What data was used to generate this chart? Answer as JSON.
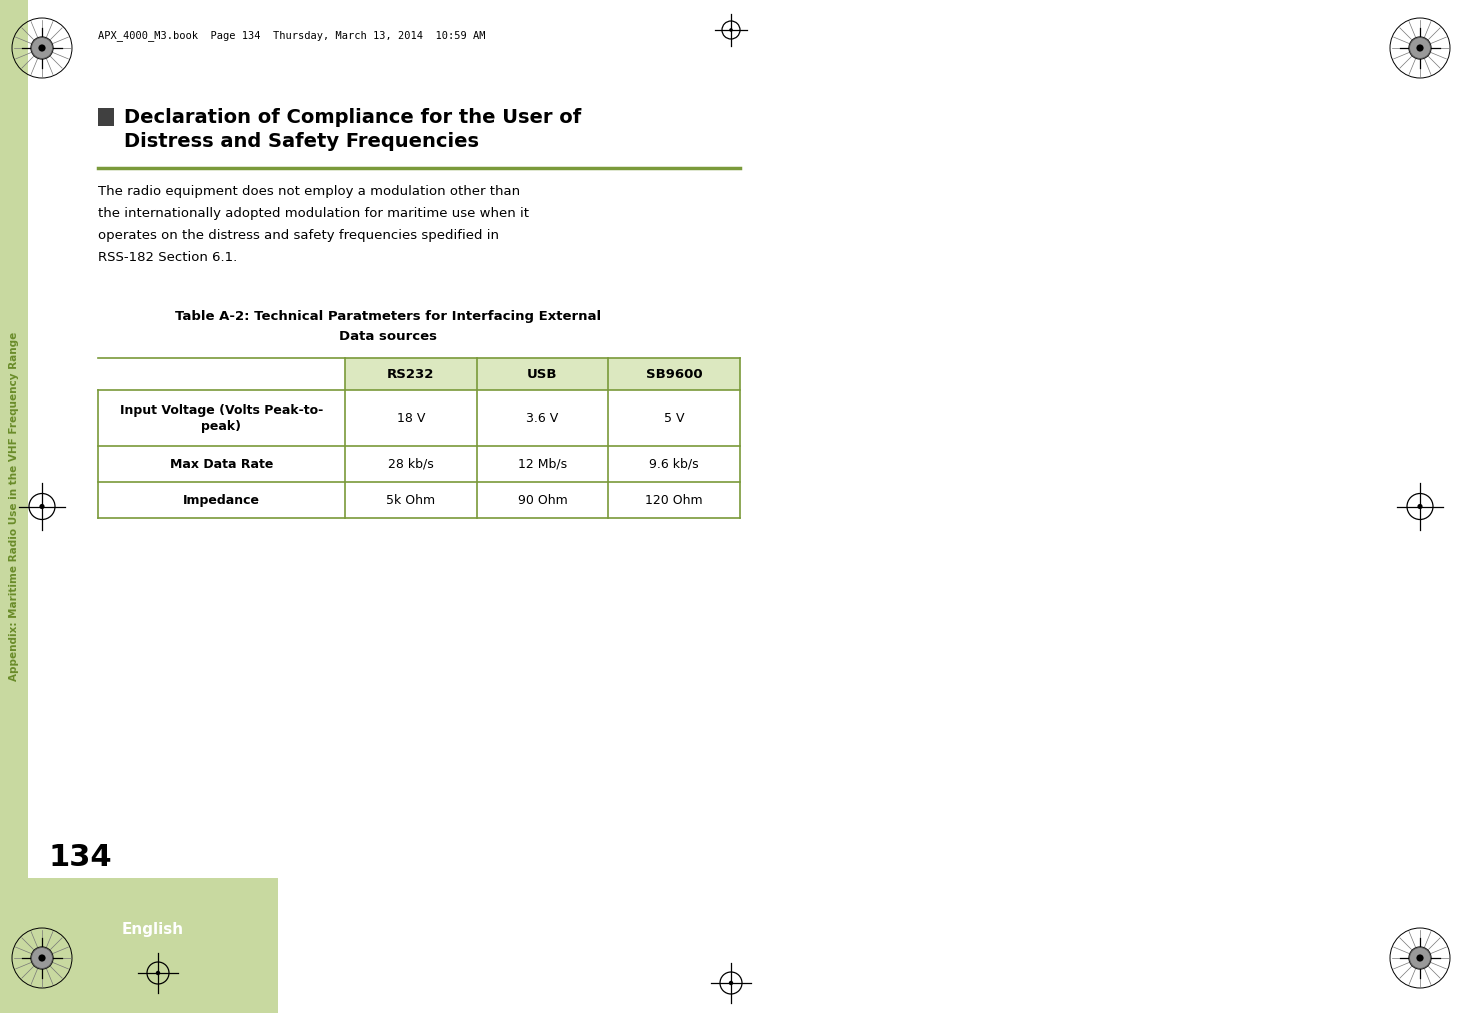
{
  "page_bg": "#ffffff",
  "sidebar_color": "#c8d9a0",
  "sidebar_text_color": "#6a8c2a",
  "sidebar_text": "Appendix: Maritime Radio Use in the VHF Frequency Range",
  "header_text": "APX_4000_M3.book  Page 134  Thursday, March 13, 2014  10:59 AM",
  "page_number": "134",
  "english_bg": "#c8d9a0",
  "english_text": "English",
  "heading_line_color": "#7a9a3a",
  "heading": "Declaration of Compliance for the User of\nDistress and Safety Frequencies",
  "body_text": "The radio equipment does not employ a modulation other than\nthe internationally adopted modulation for maritime use when it\noperates on the distress and safety frequencies spedified in\nRSS-182 Section 6.1.",
  "table_title": "Table A-2: Technical Paratmeters for Interfacing External\nData sources",
  "table_header_bg": "#dce8c0",
  "table_header_cols": [
    "RS232",
    "USB",
    "SB9600"
  ],
  "table_row_labels": [
    "Input Voltage (Volts Peak-to-\npeak)",
    "Max Data Rate",
    "Impedance"
  ],
  "table_data": [
    [
      "18 V",
      "3.6 V",
      "5 V"
    ],
    [
      "28 kb/s",
      "12 Mb/s",
      "9.6 kb/s"
    ],
    [
      "5k Ohm",
      "90 Ohm",
      "120 Ohm"
    ]
  ],
  "table_line_color": "#7a9a3a"
}
